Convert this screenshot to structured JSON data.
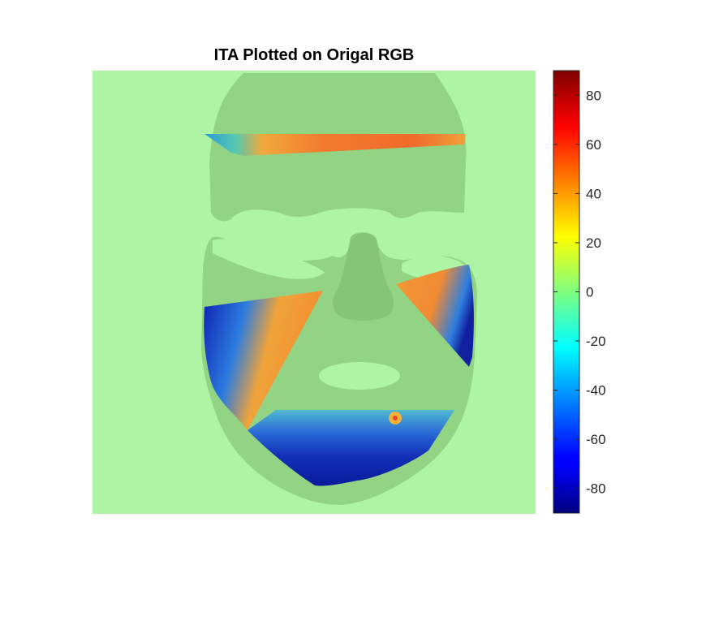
{
  "chart_data": {
    "type": "heatmap",
    "title": "ITA Plotted on Origal RGB",
    "xlabel": "",
    "ylabel": "",
    "colormap": "jet",
    "colorbar": {
      "range": [
        -90,
        90
      ],
      "ticks": [
        80,
        60,
        40,
        20,
        0,
        -20,
        -40,
        -60,
        -80
      ],
      "tick_labels": [
        "80",
        "60",
        "40",
        "20",
        "0",
        "-20",
        "-40",
        "-60",
        "-80"
      ]
    },
    "regions": [
      {
        "name": "forehead",
        "ita_range": [
          -25,
          60
        ]
      },
      {
        "name": "left-cheek",
        "ita_range": [
          -85,
          50
        ]
      },
      {
        "name": "right-cheek",
        "ita_range": [
          -60,
          50
        ]
      },
      {
        "name": "chin",
        "ita_range": [
          -90,
          45
        ]
      }
    ]
  },
  "colors": {
    "background_overlay": "#adf5a4",
    "face_overlay": "#93d384"
  }
}
